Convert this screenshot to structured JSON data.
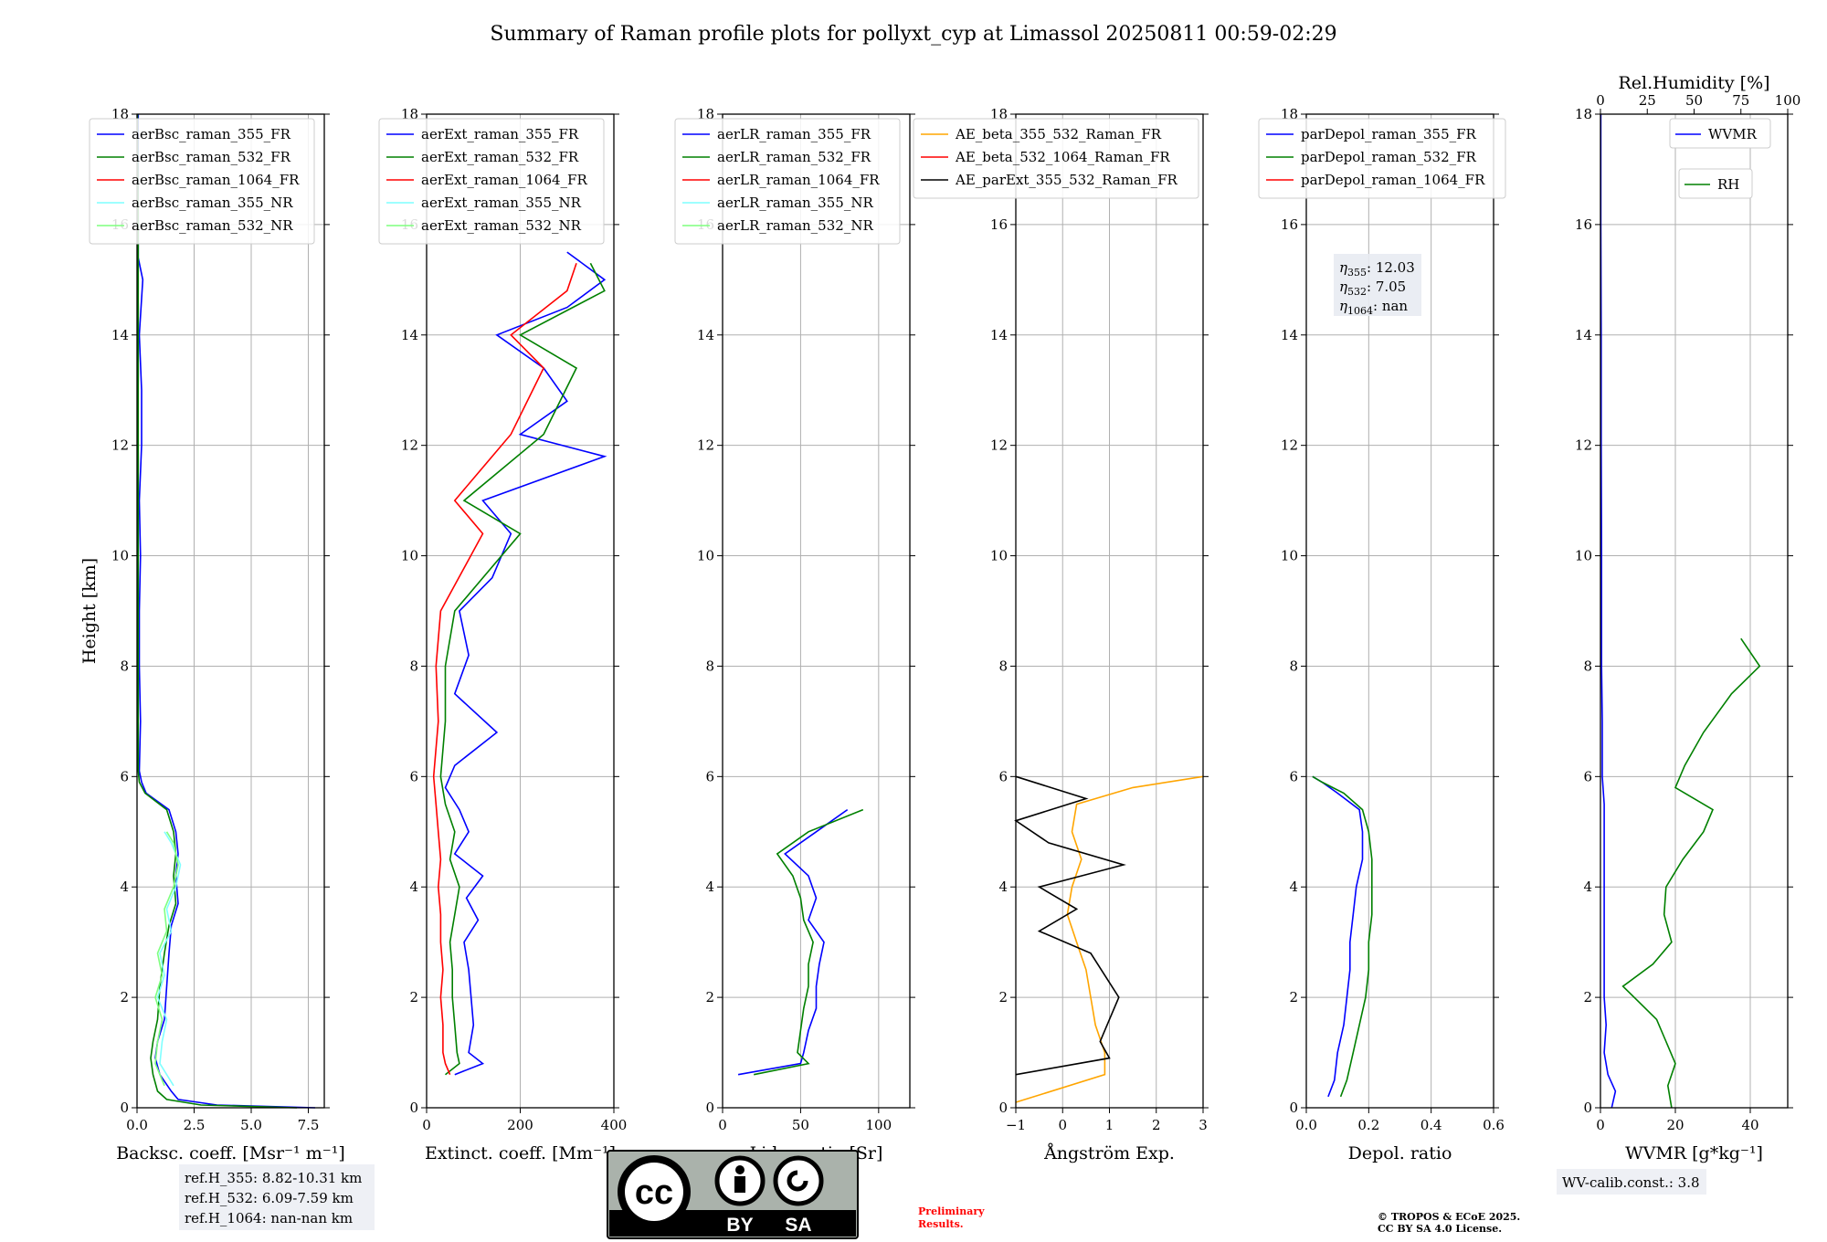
{
  "title": "Summary of Raman profile plots for pollyxt_cyp at Limassol 20250811 00:59-02:29",
  "colors": {
    "c355": "#0000ff",
    "c532": "#008000",
    "c1064": "#ff0000",
    "c355NR": "#7fffff",
    "c532NR": "#7fff7f",
    "orange": "#ffa500",
    "magenta": "#ff00ff",
    "black": "#000000"
  },
  "chart_data": [
    {
      "type": "line",
      "xlabel": "Backsc. coeff. [Msr⁻¹ m⁻¹]",
      "ylabel": "Height [km]",
      "xlim": [
        0,
        8.2
      ],
      "ylim": [
        0,
        18
      ],
      "xticks": [
        "0.0",
        "2.5",
        "5.0",
        "7.5"
      ],
      "legend": [
        "aerBsc_raman_355_FR",
        "aerBsc_raman_532_FR",
        "aerBsc_raman_1064_FR",
        "aerBsc_raman_355_NR",
        "aerBsc_raman_532_NR"
      ],
      "series": [
        {
          "name": "aerBsc_raman_355_FR",
          "heights": [
            0,
            0.05,
            0.15,
            0.3,
            0.6,
            0.9,
            1.2,
            1.6,
            2.2,
            2.8,
            3.3,
            3.7,
            4.2,
            4.6,
            5.0,
            5.4,
            5.7,
            5.9,
            6.1,
            7,
            8,
            9,
            10,
            11,
            12,
            13,
            14,
            15,
            15.4,
            16,
            17,
            18
          ],
          "values": [
            7.8,
            3.5,
            1.8,
            1.5,
            1.0,
            0.8,
            0.9,
            1.2,
            1.3,
            1.4,
            1.5,
            1.8,
            1.7,
            1.8,
            1.7,
            1.4,
            0.4,
            0.2,
            0.1,
            0.15,
            0.1,
            0.1,
            0.15,
            0.1,
            0.2,
            0.2,
            0.1,
            0.25,
            0.05,
            0.05,
            0.05,
            0.05
          ]
        },
        {
          "name": "aerBsc_raman_532_FR",
          "heights": [
            0,
            0.05,
            0.15,
            0.3,
            0.6,
            0.9,
            1.2,
            1.6,
            2.2,
            2.8,
            3.3,
            3.7,
            4.2,
            4.6,
            5.0,
            5.4,
            5.7,
            5.9,
            6.1,
            8,
            12,
            16,
            18
          ],
          "values": [
            7.0,
            2.8,
            1.3,
            0.9,
            0.7,
            0.6,
            0.7,
            0.9,
            1.0,
            1.2,
            1.4,
            1.7,
            1.6,
            1.7,
            1.6,
            1.3,
            0.35,
            0.1,
            0.05,
            0.05,
            0.05,
            0.05,
            0.02
          ]
        },
        {
          "name": "aerBsc_raman_355_NR",
          "heights": [
            0.4,
            0.8,
            1.2,
            1.6,
            2.0,
            2.4,
            2.8,
            3.2,
            3.6,
            4.0,
            4.4,
            4.8,
            5.0
          ],
          "values": [
            1.6,
            1.0,
            1.1,
            1.3,
            0.9,
            1.2,
            1.0,
            1.5,
            1.3,
            1.7,
            1.9,
            1.5,
            1.2
          ]
        },
        {
          "name": "aerBsc_raman_532_NR",
          "heights": [
            0.4,
            0.8,
            1.2,
            1.6,
            2.0,
            2.4,
            2.8,
            3.2,
            3.6,
            4.0,
            4.4,
            4.8,
            5.0
          ],
          "values": [
            1.2,
            0.8,
            0.9,
            1.1,
            0.8,
            1.1,
            0.9,
            1.3,
            1.2,
            1.6,
            1.8,
            1.6,
            1.3
          ]
        }
      ]
    },
    {
      "type": "line",
      "xlabel": "Extinct. coeff. [Mm⁻¹]",
      "xlim": [
        0,
        400
      ],
      "ylim": [
        0,
        18
      ],
      "xticks": [
        "0",
        "200",
        "400"
      ],
      "legend": [
        "aerExt_raman_355_FR",
        "aerExt_raman_532_FR",
        "aerExt_raman_1064_FR",
        "aerExt_raman_355_NR",
        "aerExt_raman_532_NR"
      ],
      "series": [
        {
          "name": "aerExt_raman_355_FR",
          "heights": [
            0.6,
            0.8,
            1.0,
            1.5,
            2.0,
            2.5,
            3.0,
            3.4,
            3.8,
            4.2,
            4.6,
            5.0,
            5.4,
            5.8,
            6.2,
            6.8,
            7.5,
            8.2,
            9.0,
            9.6,
            10.4,
            11.0,
            11.8,
            12.2,
            12.8,
            13.4,
            14.0,
            14.5,
            15.0,
            15.5
          ],
          "values": [
            60,
            120,
            90,
            100,
            95,
            90,
            80,
            110,
            85,
            120,
            60,
            90,
            70,
            40,
            60,
            150,
            60,
            90,
            70,
            140,
            180,
            120,
            380,
            200,
            300,
            250,
            150,
            300,
            380,
            300
          ]
        },
        {
          "name": "aerExt_raman_532_FR",
          "heights": [
            0.6,
            0.8,
            1.0,
            1.5,
            2.0,
            2.5,
            3.0,
            3.5,
            4.0,
            4.5,
            5.0,
            5.5,
            6.0,
            7.0,
            8.0,
            9.0,
            10.4,
            11.0,
            12.2,
            13.4,
            14.0,
            14.8,
            15.3
          ],
          "values": [
            40,
            70,
            65,
            60,
            55,
            55,
            50,
            60,
            70,
            50,
            60,
            40,
            30,
            40,
            40,
            60,
            200,
            80,
            250,
            320,
            200,
            380,
            350
          ]
        },
        {
          "name": "aerExt_raman_1064_FR",
          "heights": [
            0.6,
            0.8,
            1.0,
            1.5,
            2.0,
            2.5,
            3.0,
            3.5,
            4.0,
            4.5,
            5.0,
            5.5,
            6.0,
            7.0,
            8.0,
            9.0,
            10.4,
            11.0,
            12.2,
            13.4,
            14.0,
            14.8,
            15.3
          ],
          "values": [
            50,
            40,
            35,
            35,
            30,
            35,
            30,
            30,
            25,
            30,
            25,
            20,
            15,
            25,
            20,
            30,
            120,
            60,
            180,
            250,
            180,
            300,
            320
          ]
        }
      ]
    },
    {
      "type": "line",
      "xlabel": "Lidar ratio [Sr]",
      "xlim": [
        0,
        120
      ],
      "ylim": [
        0,
        18
      ],
      "xticks": [
        "0",
        "50",
        "100"
      ],
      "legend": [
        "aerLR_raman_355_FR",
        "aerLR_raman_532_FR",
        "aerLR_raman_1064_FR",
        "aerLR_raman_355_NR",
        "aerLR_raman_532_NR"
      ],
      "series": [
        {
          "name": "aerLR_raman_355_FR",
          "heights": [
            0.6,
            0.8,
            1.0,
            1.4,
            1.8,
            2.2,
            2.6,
            3.0,
            3.4,
            3.8,
            4.2,
            4.6,
            5.0,
            5.4
          ],
          "values": [
            10,
            50,
            52,
            55,
            60,
            60,
            62,
            65,
            55,
            60,
            55,
            40,
            60,
            80
          ]
        },
        {
          "name": "aerLR_raman_532_FR",
          "heights": [
            0.6,
            0.8,
            1.0,
            1.4,
            1.8,
            2.2,
            2.6,
            3.0,
            3.4,
            3.8,
            4.2,
            4.6,
            5.0,
            5.4
          ],
          "values": [
            20,
            55,
            48,
            50,
            52,
            55,
            55,
            58,
            52,
            50,
            45,
            35,
            55,
            90
          ]
        }
      ]
    },
    {
      "type": "line",
      "xlabel": "Ångström Exp.",
      "xlim": [
        -1,
        3
      ],
      "ylim": [
        0,
        18
      ],
      "xticks": [
        "−1",
        "0",
        "1",
        "2",
        "3"
      ],
      "legend": [
        "AE_beta_355_532_Raman_FR",
        "AE_beta_532_1064_Raman_FR",
        "AE_parExt_355_532_Raman_FR"
      ],
      "series": [
        {
          "name": "AE_beta_355_532_Raman_FR",
          "heights": [
            0.1,
            0.6,
            1.0,
            1.5,
            2.0,
            2.5,
            3.0,
            3.5,
            4.0,
            4.5,
            5.0,
            5.5,
            5.8,
            6.0
          ],
          "values": [
            -1.0,
            0.9,
            0.9,
            0.7,
            0.6,
            0.5,
            0.3,
            0.1,
            0.2,
            0.4,
            0.2,
            0.3,
            1.5,
            3.0
          ]
        },
        {
          "name": "AE_parExt_355_532_Raman_FR",
          "heights": [
            0.6,
            0.9,
            1.2,
            1.6,
            2.0,
            2.4,
            2.8,
            3.2,
            3.6,
            4.0,
            4.4,
            4.8,
            5.2,
            5.6,
            6.0
          ],
          "values": [
            -1.0,
            1.0,
            0.8,
            1.0,
            1.2,
            0.9,
            0.6,
            -0.5,
            0.3,
            -0.5,
            1.3,
            -0.3,
            -1.0,
            0.5,
            -1.0
          ]
        }
      ]
    },
    {
      "type": "line",
      "xlabel": "Depol. ratio",
      "xlim": [
        0,
        0.6
      ],
      "ylim": [
        0,
        18
      ],
      "xticks": [
        "0.0",
        "0.2",
        "0.4",
        "0.6"
      ],
      "legend": [
        "parDepol_raman_355_FR",
        "parDepol_raman_532_FR",
        "parDepol_raman_1064_FR"
      ],
      "annotations": [
        {
          "sym": "η",
          "sub": "355",
          "val": ": 12.03"
        },
        {
          "sym": "η",
          "sub": "532",
          "val": ": 7.05"
        },
        {
          "sym": "η",
          "sub": "1064",
          "val": ": nan"
        }
      ],
      "series": [
        {
          "name": "parDepol_raman_355_FR",
          "heights": [
            0.2,
            0.5,
            1.0,
            1.5,
            2.0,
            2.5,
            3.0,
            3.5,
            4.0,
            4.5,
            5.0,
            5.4,
            5.7,
            5.9,
            6.0
          ],
          "values": [
            0.07,
            0.09,
            0.1,
            0.12,
            0.13,
            0.14,
            0.14,
            0.15,
            0.16,
            0.18,
            0.18,
            0.17,
            0.1,
            0.05,
            0.02
          ]
        },
        {
          "name": "parDepol_raman_532_FR",
          "heights": [
            0.2,
            0.5,
            1.0,
            1.5,
            2.0,
            2.5,
            3.0,
            3.5,
            4.0,
            4.5,
            5.0,
            5.4,
            5.7,
            5.9,
            6.0
          ],
          "values": [
            0.11,
            0.13,
            0.15,
            0.17,
            0.19,
            0.2,
            0.2,
            0.21,
            0.21,
            0.21,
            0.2,
            0.18,
            0.12,
            0.05,
            0.02
          ]
        }
      ]
    },
    {
      "type": "line",
      "xlabel": "WVMR [g*kg⁻¹]",
      "xlabel_top": "Rel.Humidity [%]",
      "xlim": [
        0,
        50
      ],
      "xlim_top": [
        0,
        100
      ],
      "ylim": [
        0,
        18
      ],
      "xticks": [
        "0",
        "20",
        "40"
      ],
      "xticks_top": [
        "0",
        "25",
        "50",
        "75",
        "100"
      ],
      "legend": [
        "WVMR",
        "RH"
      ],
      "series": [
        {
          "name": "WVMR",
          "heights": [
            0,
            0.3,
            0.6,
            1.0,
            1.5,
            2.0,
            3.0,
            4.0,
            5.0,
            5.5,
            6.0,
            7.0,
            8.0,
            10.0,
            12.0,
            14.0,
            16.0,
            18.0
          ],
          "values": [
            3,
            4,
            2,
            1,
            1.5,
            1,
            1,
            1,
            1,
            1,
            0.5,
            0.5,
            0.3,
            0.3,
            0.2,
            0.2,
            0.1,
            0.1
          ]
        },
        {
          "name": "RH",
          "heights": [
            0,
            0.4,
            0.8,
            1.2,
            1.6,
            2.0,
            2.2,
            2.6,
            3.0,
            3.5,
            4.0,
            4.5,
            5.0,
            5.4,
            5.8,
            6.2,
            6.8,
            7.5,
            8.0,
            8.5
          ],
          "values": [
            38,
            36,
            40,
            35,
            30,
            18,
            12,
            28,
            38,
            34,
            35,
            44,
            55,
            60,
            40,
            45,
            55,
            70,
            85,
            75
          ]
        }
      ]
    }
  ],
  "texts": {
    "refH355": "ref.H_355: 8.82-10.31 km",
    "refH532": "ref.H_532: 6.09-7.59 km",
    "refH1064": "ref.H_1064: nan-nan km",
    "prelim1": "Preliminary",
    "prelim2": "Results.",
    "copy1": "© TROPOS & ECoE 2025.",
    "copy2": "CC BY SA 4.0 License.",
    "wvcalib": "WV-calib.const.: 3.8",
    "cc_logo": "cc",
    "cc_by": "BY",
    "cc_sa": "SA"
  }
}
